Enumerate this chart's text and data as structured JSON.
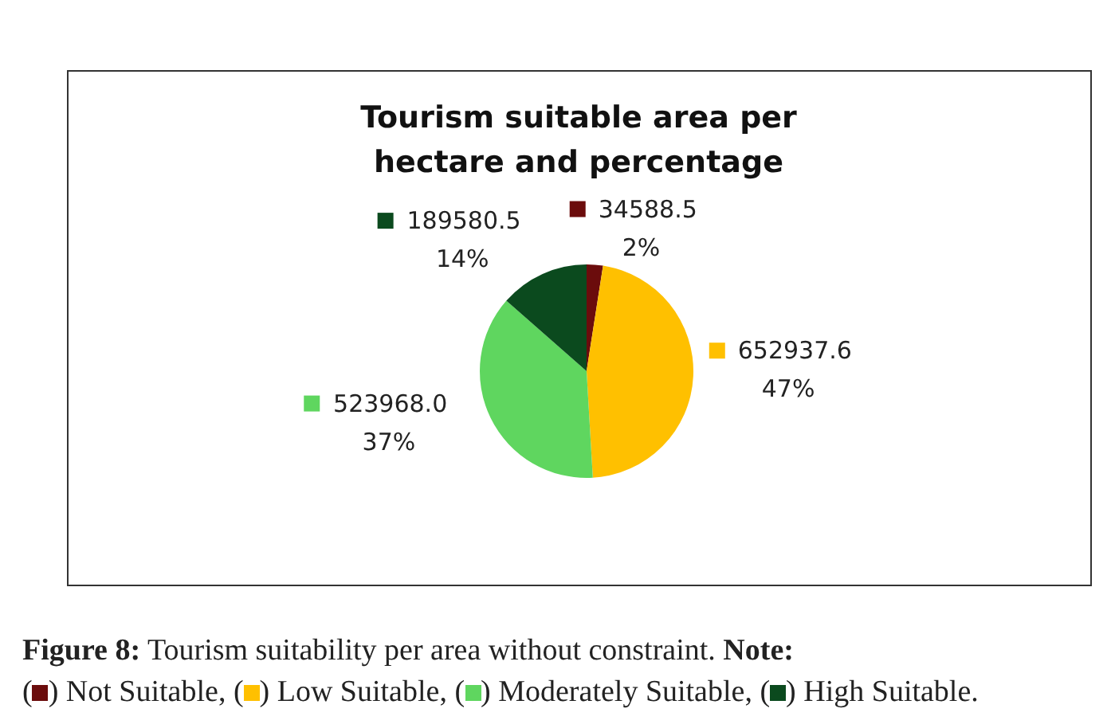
{
  "chart_data": {
    "type": "pie",
    "title": "Tourism suitable area per hectare and percentage",
    "categories": [
      "Not Suitable",
      "Low Suitable",
      "Moderately Suitable",
      "High Suitable"
    ],
    "values": [
      34588.5,
      652937.6,
      523968.0,
      189580.5
    ],
    "colors": [
      "#6b0c0c",
      "#ffc000",
      "#5fd65f",
      "#0b4a1e"
    ],
    "value_labels": [
      "34588.5\n2%",
      "652937.6\n47%",
      "523968.0\n37%",
      "189580.5\n14%"
    ],
    "legend": "bottom",
    "annotations": [
      "Figure 8: Tourism suitability per area without constraint.",
      "Note:",
      "(",
      ")",
      ",",
      "."
    ]
  }
}
